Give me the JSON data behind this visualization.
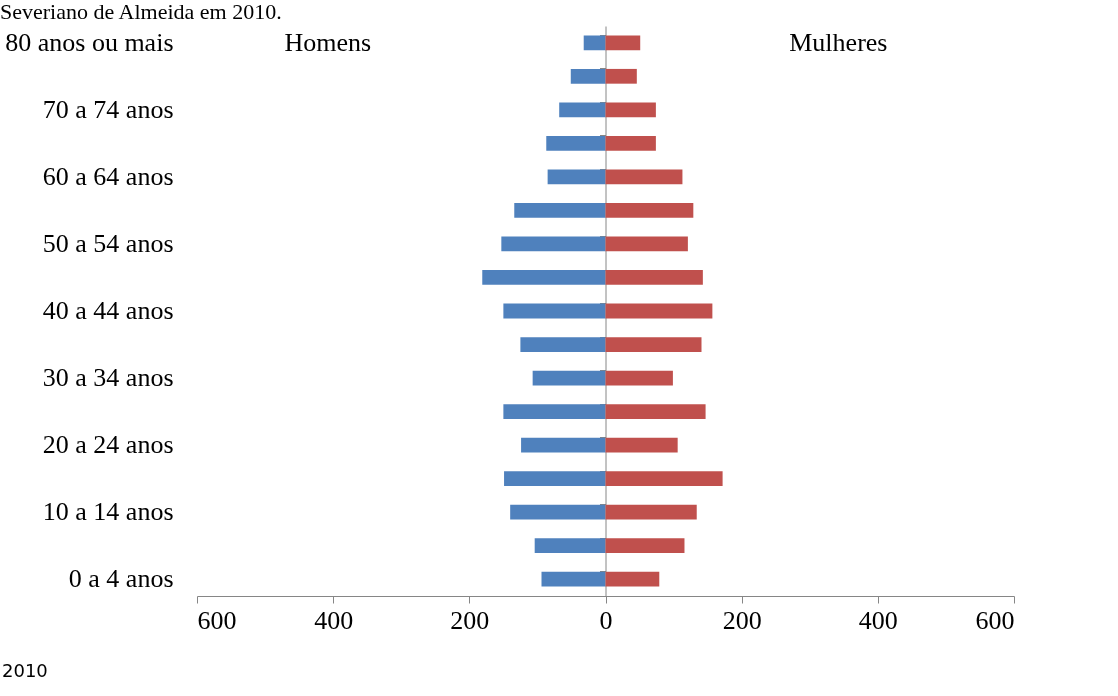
{
  "chart_data": {
    "type": "bar",
    "orientation": "horizontal",
    "title": "Severiano de Almeida em 2010.",
    "annotations": [
      "Homens",
      "Mulheres",
      "2010"
    ],
    "categories": [
      "80 anos ou mais",
      null,
      "70 a 74 anos",
      null,
      "60 a 64 anos",
      null,
      "50 a 54 anos",
      null,
      "40 a 44 anos",
      null,
      "30 a 34 anos",
      null,
      "20 a 24 anos",
      null,
      "10 a 14 anos",
      null,
      "0 a 4 anos"
    ],
    "series": [
      {
        "color": "#4f81bd",
        "values": [
          -32,
          -51,
          -68,
          -87,
          -85,
          -134,
          -153,
          -181,
          -150,
          -125,
          -107,
          -150,
          -124,
          -149,
          -140,
          -104,
          -94
        ]
      },
      {
        "color": "#c0504d",
        "values": [
          51,
          46,
          74,
          74,
          113,
          129,
          121,
          143,
          157,
          141,
          99,
          147,
          106,
          172,
          134,
          116,
          79
        ]
      }
    ],
    "xlim": [
      -600,
      600
    ],
    "xticks": [
      {
        "value": -600,
        "label": "600"
      },
      {
        "value": -400,
        "label": "400"
      },
      {
        "value": -200,
        "label": "200"
      },
      0,
      200,
      400,
      600
    ],
    "stacked": true,
    "legend": false
  }
}
